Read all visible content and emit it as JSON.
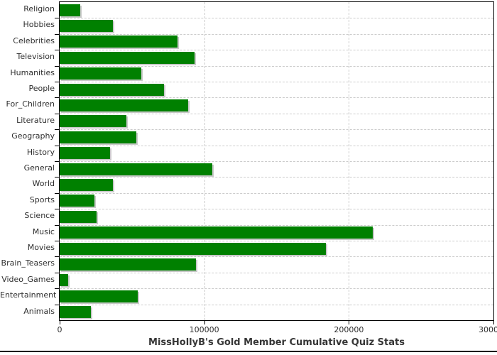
{
  "chart_data": {
    "type": "bar",
    "orientation": "horizontal",
    "title": "MissHollyB's Gold Member Cumulative Quiz Stats",
    "categories": [
      "Religion",
      "Hobbies",
      "Celebrities",
      "Television",
      "Humanities",
      "People",
      "For_Children",
      "Literature",
      "Geography",
      "History",
      "General",
      "World",
      "Sports",
      "Science",
      "Music",
      "Movies",
      "Brain_Teasers",
      "Video_Games",
      "Entertainment",
      "Animals"
    ],
    "values": [
      14000,
      37000,
      81500,
      93500,
      56500,
      72000,
      89000,
      46000,
      53000,
      35000,
      105500,
      37000,
      24000,
      25500,
      216500,
      184000,
      94500,
      6000,
      54000,
      21500
    ],
    "xlim": [
      0,
      300000
    ],
    "x_ticks": [
      0,
      100000,
      200000,
      300000
    ],
    "x_tick_labels": [
      "0",
      "100000",
      "200000",
      "300000"
    ],
    "grid": true,
    "legend": "none",
    "bar_color": "#008000",
    "bar_shadow_color": "#c9c9c9",
    "grid_color": "#cccccc",
    "axis_color": "#000000",
    "text_color": "#2e2e2e",
    "title_color": "#363636"
  }
}
